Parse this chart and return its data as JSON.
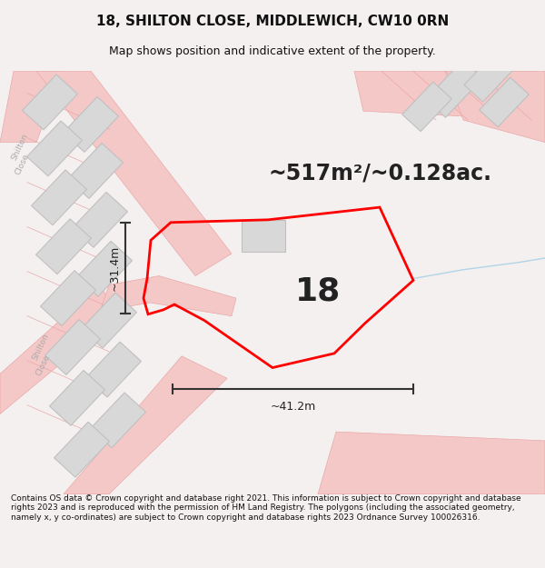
{
  "title": "18, SHILTON CLOSE, MIDDLEWICH, CW10 0RN",
  "subtitle": "Map shows position and indicative extent of the property.",
  "area_text": "~517m²/~0.128ac.",
  "label_18": "18",
  "dim_h": "~31.4m",
  "dim_w": "~41.2m",
  "footer": "Contains OS data © Crown copyright and database right 2021. This information is subject to Crown copyright and database rights 2023 and is reproduced with the permission of HM Land Registry. The polygons (including the associated geometry, namely x, y co-ordinates) are subject to Crown copyright and database rights 2023 Ordnance Survey 100026316.",
  "bg_color": "#f5f0f0",
  "map_bg": "#ffffff",
  "plot_color": "#ff0000",
  "road_color": "#f5c8c8",
  "road_edge_color": "#e8a8a8",
  "building_color": "#d8d8d8",
  "building_edge_color": "#c0c0c0",
  "figsize": [
    6.0,
    6.25
  ],
  "dpi": 100,
  "title_fontsize": 11,
  "subtitle_fontsize": 9,
  "area_fontsize": 17,
  "label_fontsize": 26,
  "dim_fontsize": 9,
  "footer_fontsize": 6.5,
  "road_label_color": "#aaaaaa",
  "stream_color": "#b0d4e8"
}
